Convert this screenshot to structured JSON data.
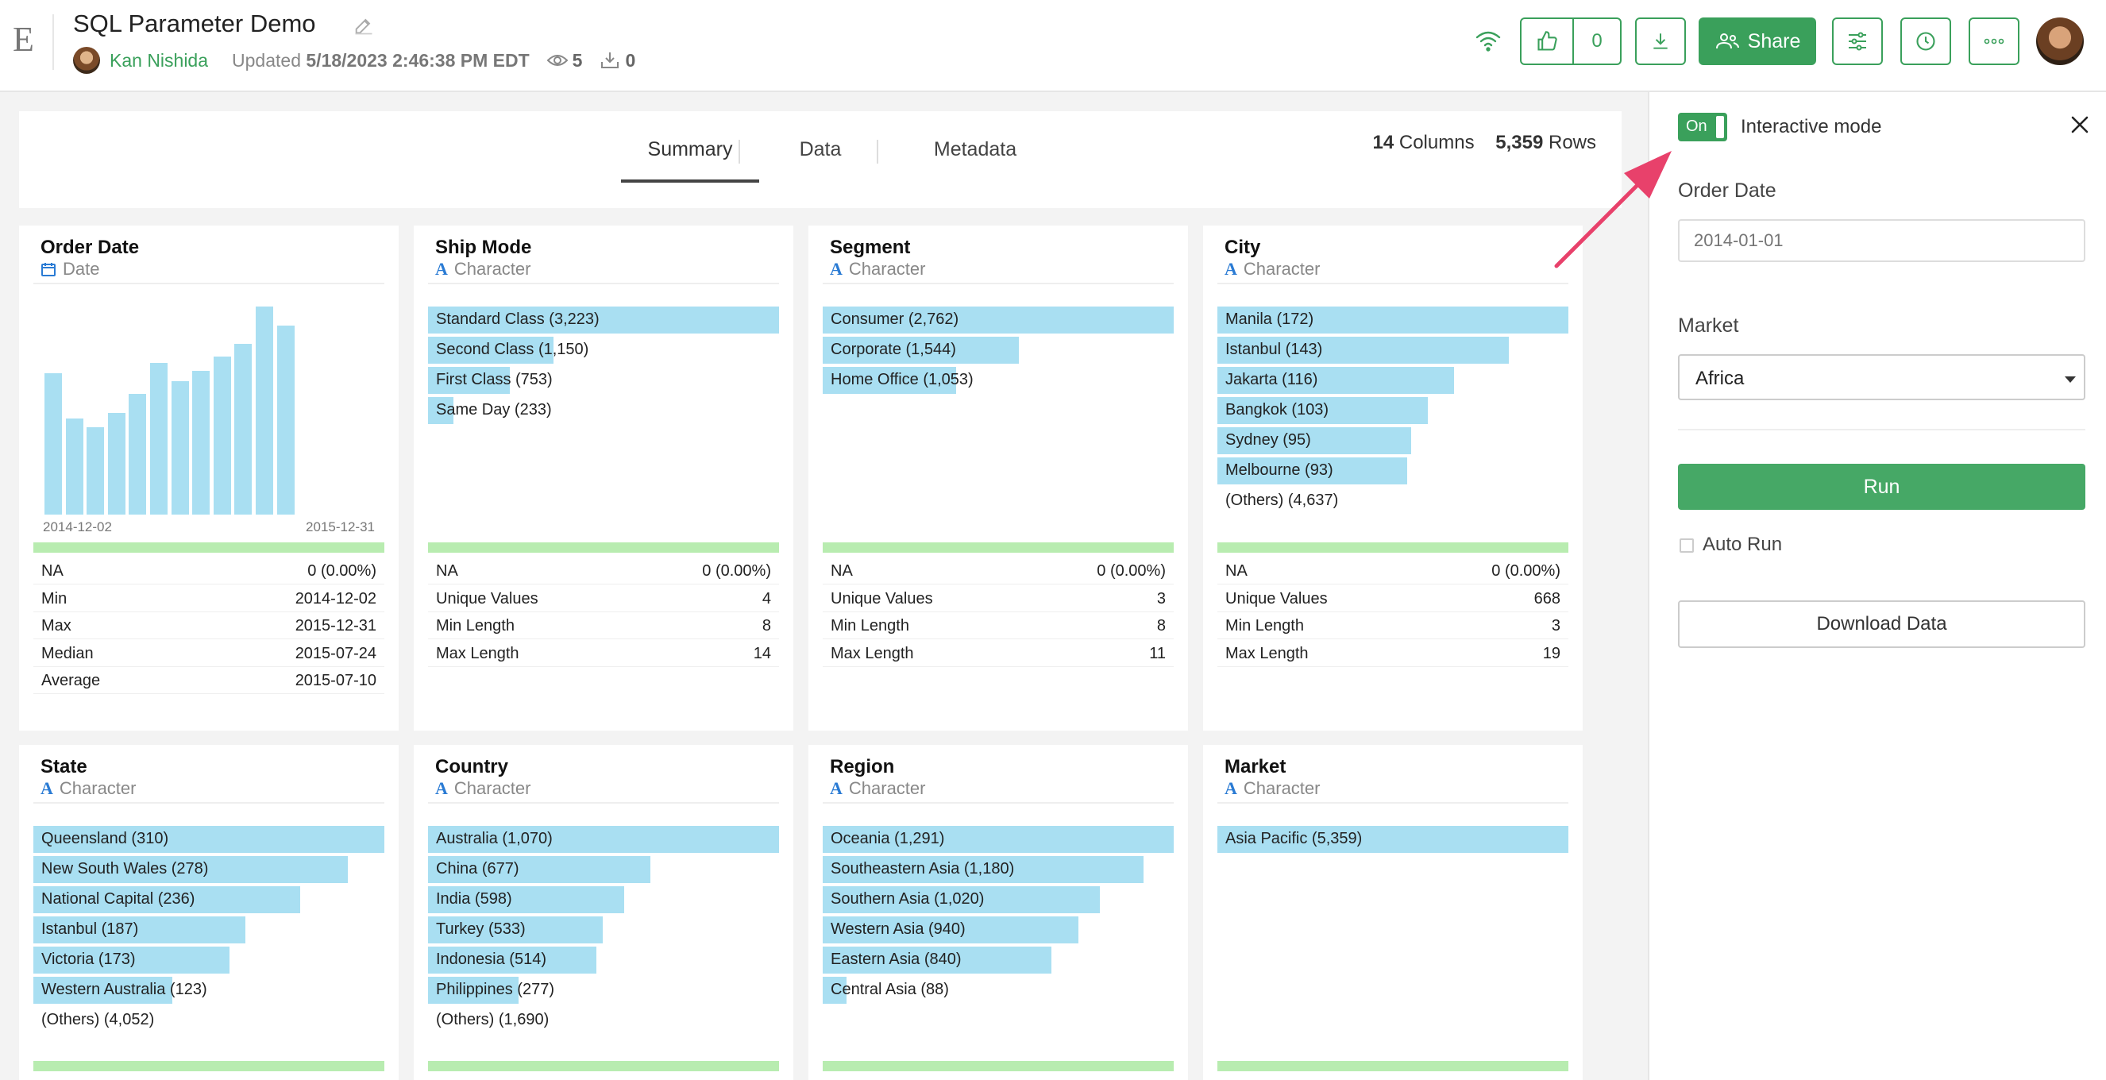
{
  "header": {
    "logo": "E",
    "title": "SQL Parameter Demo",
    "author": "Kan Nishida",
    "updated_prefix": "Updated",
    "updated_value": "5/18/2023 2:46:38 PM EDT",
    "views": "5",
    "downloads": "0",
    "likes": "0",
    "share_label": "Share"
  },
  "tabs": [
    {
      "label": "Summary",
      "active": true
    },
    {
      "label": "Data",
      "active": false
    },
    {
      "label": "Metadata",
      "active": false
    }
  ],
  "counts": {
    "columns": "14",
    "columns_label": "Columns",
    "rows": "5,359",
    "rows_label": "Rows"
  },
  "cards": [
    {
      "title": "Order Date",
      "type": "Date",
      "histogram": {
        "x_start": "2014-12-02",
        "x_end": "2015-12-31",
        "values": [
          0.68,
          0.46,
          0.42,
          0.49,
          0.58,
          0.73,
          0.64,
          0.69,
          0.76,
          0.82,
          1.0,
          0.91
        ]
      },
      "stats": [
        [
          "NA",
          "0 (0.00%)"
        ],
        [
          "Min",
          "2014-12-02"
        ],
        [
          "Max",
          "2015-12-31"
        ],
        [
          "Median",
          "2015-07-24"
        ],
        [
          "Average",
          "2015-07-10"
        ]
      ]
    },
    {
      "title": "Ship Mode",
      "type": "Character",
      "bars": [
        [
          "Standard Class (3,223)",
          1.0
        ],
        [
          "Second Class (1,150)",
          0.357
        ],
        [
          "First Class (753)",
          0.234
        ],
        [
          "Same Day (233)",
          0.072
        ]
      ],
      "stats": [
        [
          "NA",
          "0 (0.00%)"
        ],
        [
          "Unique Values",
          "4"
        ],
        [
          "Min Length",
          "8"
        ],
        [
          "Max Length",
          "14"
        ]
      ]
    },
    {
      "title": "Segment",
      "type": "Character",
      "bars": [
        [
          "Consumer (2,762)",
          1.0
        ],
        [
          "Corporate (1,544)",
          0.559
        ],
        [
          "Home Office (1,053)",
          0.381
        ]
      ],
      "stats": [
        [
          "NA",
          "0 (0.00%)"
        ],
        [
          "Unique Values",
          "3"
        ],
        [
          "Min Length",
          "8"
        ],
        [
          "Max Length",
          "11"
        ]
      ]
    },
    {
      "title": "City",
      "type": "Character",
      "bars": [
        [
          "Manila (172)",
          1.0
        ],
        [
          "Istanbul (143)",
          0.831
        ],
        [
          "Jakarta (116)",
          0.674
        ],
        [
          "Bangkok (103)",
          0.599
        ],
        [
          "Sydney (95)",
          0.552
        ],
        [
          "Melbourne (93)",
          0.541
        ],
        [
          "(Others) (4,637)",
          0
        ]
      ],
      "stats": [
        [
          "NA",
          "0 (0.00%)"
        ],
        [
          "Unique Values",
          "668"
        ],
        [
          "Min Length",
          "3"
        ],
        [
          "Max Length",
          "19"
        ]
      ]
    },
    {
      "title": "State",
      "type": "Character",
      "bars": [
        [
          "Queensland (310)",
          1.0
        ],
        [
          "New South Wales (278)",
          0.897
        ],
        [
          "National Capital (236)",
          0.761
        ],
        [
          "Istanbul (187)",
          0.603
        ],
        [
          "Victoria (173)",
          0.558
        ],
        [
          "Western Australia (123)",
          0.397
        ],
        [
          "(Others) (4,052)",
          0
        ]
      ]
    },
    {
      "title": "Country",
      "type": "Character",
      "bars": [
        [
          "Australia (1,070)",
          1.0
        ],
        [
          "China (677)",
          0.633
        ],
        [
          "India (598)",
          0.559
        ],
        [
          "Turkey (533)",
          0.498
        ],
        [
          "Indonesia (514)",
          0.48
        ],
        [
          "Philippines (277)",
          0.259
        ],
        [
          "(Others) (1,690)",
          0
        ]
      ]
    },
    {
      "title": "Region",
      "type": "Character",
      "bars": [
        [
          "Oceania (1,291)",
          1.0
        ],
        [
          "Southeastern Asia (1,180)",
          0.914
        ],
        [
          "Southern Asia (1,020)",
          0.79
        ],
        [
          "Western Asia (940)",
          0.728
        ],
        [
          "Eastern Asia (840)",
          0.651
        ],
        [
          "Central Asia (88)",
          0.068
        ]
      ]
    },
    {
      "title": "Market",
      "type": "Character",
      "bars": [
        [
          "Asia Pacific (5,359)",
          1.0
        ]
      ]
    }
  ],
  "side": {
    "toggle_label": "On",
    "interactive_mode_label": "Interactive mode",
    "order_date_label": "Order Date",
    "order_date_placeholder": "2014-01-01",
    "market_label": "Market",
    "market_value": "Africa",
    "run_label": "Run",
    "auto_run_label": "Auto Run",
    "download_label": "Download Data"
  },
  "colors": {
    "accent": "#3aa05b",
    "bar": "#a9dff2",
    "na_bar": "#b8ecb0",
    "arrow": "#e8416b"
  }
}
